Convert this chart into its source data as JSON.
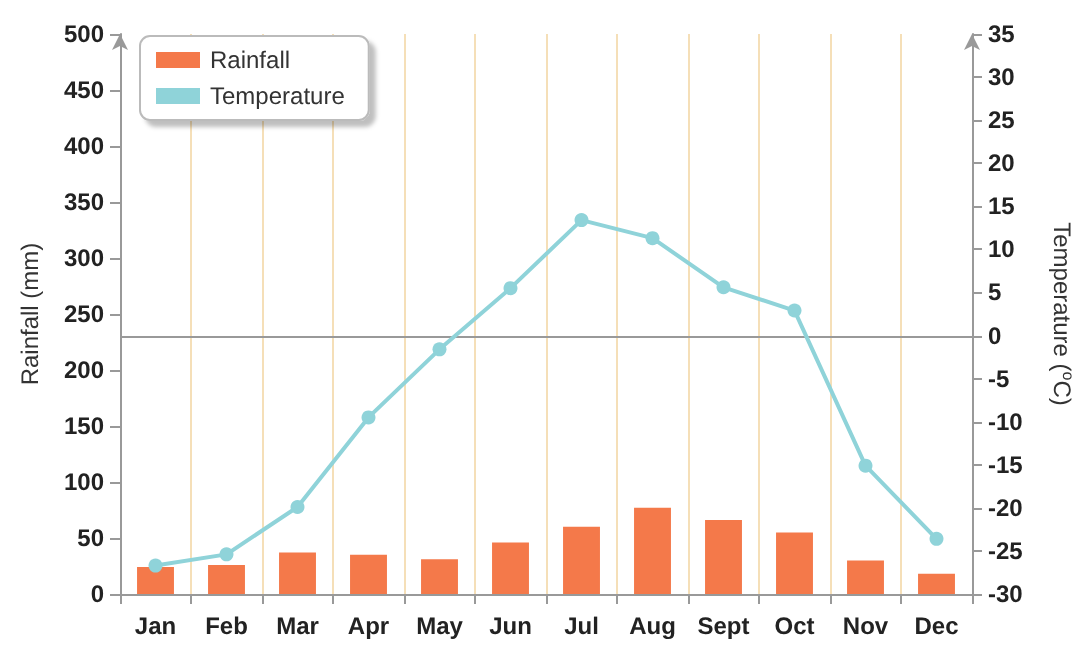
{
  "chart_data": {
    "type": "bar",
    "categories": [
      "Jan",
      "Feb",
      "Mar",
      "Apr",
      "May",
      "Jun",
      "Jul",
      "Aug",
      "Sept",
      "Oct",
      "Nov",
      "Dec"
    ],
    "ylabel": "Rainfall (mm)",
    "y2label": "Temperature ($^{o}$C)",
    "series": [
      {
        "name": "Rainfall",
        "color": "#f4794a",
        "values": [
          24,
          26,
          37,
          35,
          31,
          46,
          60,
          77,
          66,
          55,
          30,
          18
        ]
      },
      {
        "name": "Temperature",
        "type": "line",
        "axis": "y2",
        "color": "#8fd3d9",
        "marker": "circle",
        "values": [
          -26.7,
          -25.4,
          -19.9,
          -9.5,
          -1.6,
          5.5,
          13.4,
          11.3,
          5.6,
          2.9,
          -15.1,
          -23.6
        ]
      }
    ],
    "ylim": [
      0,
      500
    ],
    "yticks": [
      0,
      50,
      100,
      150,
      200,
      250,
      300,
      350,
      400,
      450,
      500
    ],
    "y2lim": [
      -30,
      35
    ],
    "y2ticks": [
      -30,
      -25,
      -20,
      -15,
      -10,
      -5,
      0,
      5,
      10,
      15,
      20,
      25,
      30,
      35
    ],
    "ref_lines": [
      {
        "axis": "y2",
        "value": 0,
        "color": "#999999"
      }
    ],
    "grid": "x",
    "legend": "top left"
  }
}
